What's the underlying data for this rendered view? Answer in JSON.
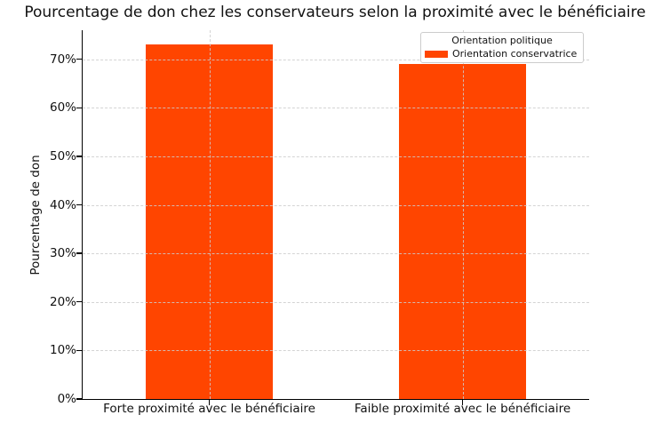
{
  "chart_data": {
    "type": "bar",
    "title": "Pourcentage de don chez les conservateurs selon la proximité avec le bénéficiaire",
    "xlabel": "",
    "ylabel": "Pourcentage de don",
    "categories": [
      "Forte proximité avec le bénéficiaire",
      "Faible proximité avec le bénéficiaire"
    ],
    "values": [
      73,
      69
    ],
    "unit": "%",
    "ylim": [
      0,
      76
    ],
    "yticks": [
      0,
      10,
      20,
      30,
      40,
      50,
      60,
      70
    ],
    "ytick_labels": [
      "0%",
      "10%",
      "20%",
      "30%",
      "40%",
      "50%",
      "60%",
      "70%"
    ],
    "grid": {
      "style": "dashed",
      "axes": "both",
      "above_bars": true
    },
    "bar_color": "#FF4500",
    "legend": {
      "position": "upper right",
      "title": "Orientation politique",
      "entries": [
        {
          "label": "Orientation conservatrice",
          "color": "#FF4500"
        }
      ]
    }
  }
}
